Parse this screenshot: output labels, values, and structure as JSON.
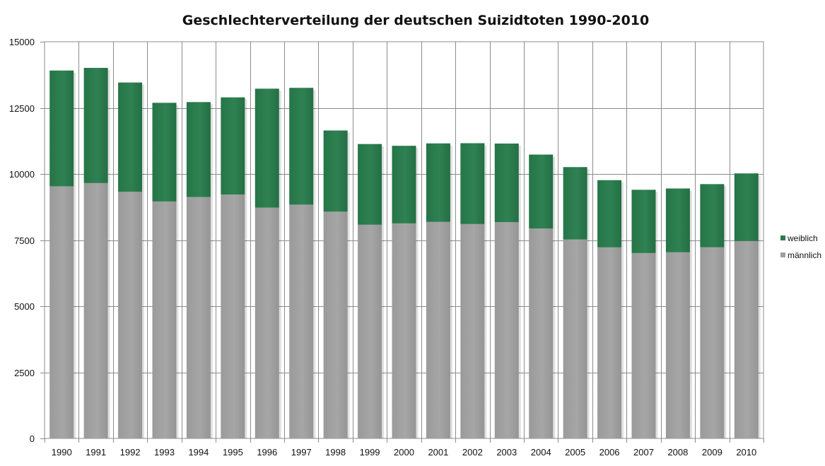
{
  "chart_data": {
    "type": "bar",
    "stacked": true,
    "title": "Geschlechterverteilung der deutschen Suizidtoten 1990-2010",
    "xlabel": "",
    "ylabel": "",
    "ylim": [
      0,
      15000
    ],
    "yticks": [
      "0",
      "2500",
      "5000",
      "7500",
      "10000",
      "12500",
      "15000"
    ],
    "ytick_values": [
      0,
      2500,
      5000,
      7500,
      10000,
      12500,
      15000
    ],
    "grid": true,
    "legend_position": "right",
    "categories": [
      "1990",
      "1991",
      "1992",
      "1993",
      "1994",
      "1995",
      "1996",
      "1997",
      "1998",
      "1999",
      "2000",
      "2001",
      "2002",
      "2003",
      "2004",
      "2005",
      "2006",
      "2007",
      "2008",
      "2009",
      "2010"
    ],
    "series": [
      {
        "name": "männlich",
        "color": "#a0a0a0",
        "values": [
          9534,
          9656,
          9326,
          8960,
          9130,
          9222,
          8728,
          8841,
          8575,
          8080,
          8131,
          8188,
          8106,
          8179,
          7939,
          7523,
          7225,
          7009,
          7039,
          7228,
          7465
        ]
      },
      {
        "name": "weiblich",
        "color": "#2e7b4f",
        "values": [
          4377,
          4355,
          4132,
          3730,
          3588,
          3674,
          4497,
          4415,
          3069,
          3052,
          2934,
          2968,
          3057,
          2971,
          2794,
          2737,
          2540,
          2393,
          2412,
          2388,
          2556
        ]
      }
    ]
  }
}
